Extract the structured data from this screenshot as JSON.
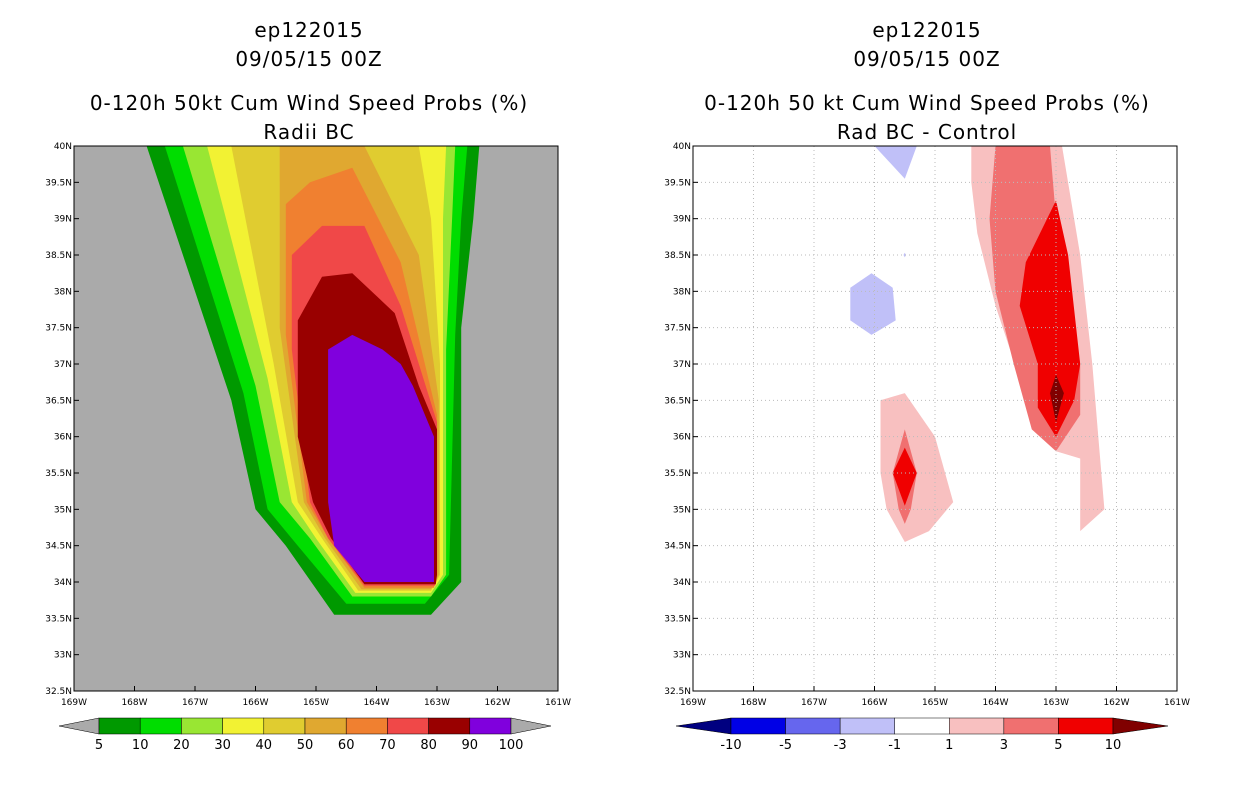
{
  "charts": [
    {
      "storm": "ep122015",
      "datetime": "09/05/15 00Z",
      "title": "0-120h 50kt Cum Wind Speed Probs (%)",
      "subtitle": "Radii BC"
    },
    {
      "storm": "ep122015",
      "datetime": "09/05/15 00Z",
      "title": "0-120h 50 kt Cum Wind Speed Probs (%)",
      "subtitle": "Rad BC - Control"
    }
  ],
  "chart_data": [
    {
      "type": "heatmap",
      "title": "0-120h 50kt Cum Wind Speed Probs (%)",
      "subtitle": "Radii BC",
      "xlim": [
        -169,
        -161
      ],
      "ylim": [
        32.5,
        40
      ],
      "x_ticks": [
        -169,
        -168,
        -167,
        -166,
        -165,
        -164,
        -163,
        -162,
        -161
      ],
      "x_tick_labels": [
        "169W",
        "168W",
        "167W",
        "166W",
        "165W",
        "164W",
        "163W",
        "162W",
        "161W"
      ],
      "y_ticks": [
        32.5,
        33,
        33.5,
        34,
        34.5,
        35,
        35.5,
        36,
        36.5,
        37,
        37.5,
        38,
        38.5,
        39,
        39.5,
        40
      ],
      "y_tick_labels": [
        "32.5N",
        "33N",
        "33.5N",
        "34N",
        "34.5N",
        "35N",
        "35.5N",
        "36N",
        "36.5N",
        "37N",
        "37.5N",
        "38N",
        "38.5N",
        "39N",
        "39.5N",
        "40N"
      ],
      "background": "#aaaaaa",
      "grid": false,
      "colorbar": {
        "labels": [
          "5",
          "10",
          "20",
          "30",
          "40",
          "50",
          "60",
          "70",
          "80",
          "90",
          "100"
        ],
        "colors": [
          "#009900",
          "#00dd00",
          "#99e633",
          "#f2f233",
          "#e0cc30",
          "#e0a830",
          "#f08030",
          "#f04848",
          "#990000",
          "#8000dd"
        ],
        "under_color": "#aaaaaa",
        "over_color": "#aaaaaa"
      },
      "levels": [
        {
          "min": 5,
          "color": "#009900",
          "polygon": [
            [
              -167.8,
              40
            ],
            [
              -166.4,
              36.5
            ],
            [
              -166,
              35
            ],
            [
              -165.5,
              34.5
            ],
            [
              -164.7,
              33.55
            ],
            [
              -163.1,
              33.55
            ],
            [
              -162.6,
              34
            ],
            [
              -162.6,
              37.5
            ],
            [
              -162.4,
              39
            ],
            [
              -162.3,
              40
            ]
          ]
        },
        {
          "min": 10,
          "color": "#00dd00",
          "polygon": [
            [
              -167.5,
              40
            ],
            [
              -166.2,
              36.6
            ],
            [
              -165.8,
              35
            ],
            [
              -165.3,
              34.5
            ],
            [
              -164.5,
              33.7
            ],
            [
              -163.2,
              33.7
            ],
            [
              -162.8,
              34.1
            ],
            [
              -162.7,
              37.4
            ],
            [
              -162.6,
              39
            ],
            [
              -162.5,
              40
            ]
          ]
        },
        {
          "min": 20,
          "color": "#99e633",
          "polygon": [
            [
              -167.2,
              40
            ],
            [
              -166,
              36.7
            ],
            [
              -165.6,
              35.1
            ],
            [
              -165.1,
              34.6
            ],
            [
              -164.4,
              33.8
            ],
            [
              -163.1,
              33.8
            ],
            [
              -162.85,
              34.1
            ],
            [
              -162.85,
              37.2
            ],
            [
              -162.75,
              39
            ],
            [
              -162.7,
              40
            ]
          ]
        },
        {
          "min": 30,
          "color": "#f2f233",
          "polygon": [
            [
              -166.8,
              40
            ],
            [
              -165.8,
              36.8
            ],
            [
              -165.4,
              35.1
            ],
            [
              -165,
              34.6
            ],
            [
              -164.35,
              33.85
            ],
            [
              -163.1,
              33.85
            ],
            [
              -162.9,
              34.1
            ],
            [
              -162.9,
              37.1
            ],
            [
              -162.9,
              39
            ],
            [
              -162.85,
              40
            ]
          ]
        },
        {
          "min": 40,
          "color": "#e0cc30",
          "polygon": [
            [
              -166.4,
              40
            ],
            [
              -165.7,
              37
            ],
            [
              -165.3,
              35.1
            ],
            [
              -164.9,
              34.6
            ],
            [
              -164.3,
              33.88
            ],
            [
              -163.1,
              33.88
            ],
            [
              -162.95,
              34.1
            ],
            [
              -162.95,
              37
            ],
            [
              -163.1,
              39
            ],
            [
              -163.3,
              40
            ]
          ]
        },
        {
          "min": 50,
          "color": "#e0a830",
          "polygon": [
            [
              -165.6,
              40
            ],
            [
              -165.6,
              37.5
            ],
            [
              -165.2,
              35.1
            ],
            [
              -164.85,
              34.6
            ],
            [
              -164.25,
              33.9
            ],
            [
              -163.1,
              33.9
            ],
            [
              -162.97,
              34.1
            ],
            [
              -162.97,
              36.5
            ],
            [
              -163.3,
              38.5
            ],
            [
              -164.2,
              40
            ]
          ]
        },
        {
          "min": 60,
          "color": "#f08030",
          "polygon": [
            [
              -165.5,
              39.2
            ],
            [
              -165.5,
              37.4
            ],
            [
              -165.15,
              35.1
            ],
            [
              -164.8,
              34.6
            ],
            [
              -164.2,
              33.92
            ],
            [
              -163.05,
              33.92
            ],
            [
              -163,
              34.1
            ],
            [
              -163,
              36.3
            ],
            [
              -163.6,
              38.4
            ],
            [
              -164.4,
              39.7
            ],
            [
              -165.1,
              39.5
            ]
          ]
        },
        {
          "min": 70,
          "color": "#f04848",
          "polygon": [
            [
              -165.4,
              38.5
            ],
            [
              -165.4,
              37.2
            ],
            [
              -165.1,
              35.1
            ],
            [
              -164.8,
              34.6
            ],
            [
              -164.2,
              33.95
            ],
            [
              -163.03,
              33.95
            ],
            [
              -163,
              34.1
            ],
            [
              -163,
              36.2
            ],
            [
              -163.6,
              37.8
            ],
            [
              -164.2,
              38.9
            ],
            [
              -164.9,
              38.9
            ]
          ]
        },
        {
          "min": 80,
          "color": "#990000",
          "polygon": [
            [
              -165.3,
              37.6
            ],
            [
              -165.3,
              36
            ],
            [
              -165.05,
              35.1
            ],
            [
              -164.75,
              34.6
            ],
            [
              -164.2,
              33.97
            ],
            [
              -163.02,
              33.97
            ],
            [
              -163,
              34.1
            ],
            [
              -163,
              36.1
            ],
            [
              -163.3,
              36.7
            ],
            [
              -163.7,
              37.7
            ],
            [
              -164.4,
              38.25
            ],
            [
              -164.9,
              38.2
            ]
          ]
        },
        {
          "min": 90,
          "color": "#8000dd",
          "polygon": [
            [
              -164.8,
              37.2
            ],
            [
              -164.8,
              35.1
            ],
            [
              -164.7,
              34.5
            ],
            [
              -164.2,
              34
            ],
            [
              -163.05,
              34
            ],
            [
              -163.05,
              36
            ],
            [
              -163.4,
              36.7
            ],
            [
              -163.6,
              37
            ],
            [
              -163.9,
              37.2
            ],
            [
              -164.4,
              37.4
            ]
          ]
        }
      ]
    },
    {
      "type": "heatmap",
      "title": "0-120h 50 kt Cum Wind Speed Probs (%)",
      "subtitle": "Rad BC - Control",
      "xlim": [
        -169,
        -161
      ],
      "ylim": [
        32.5,
        40
      ],
      "x_ticks": [
        -169,
        -168,
        -167,
        -166,
        -165,
        -164,
        -163,
        -162,
        -161
      ],
      "x_tick_labels": [
        "169W",
        "168W",
        "167W",
        "166W",
        "165W",
        "164W",
        "163W",
        "162W",
        "161W"
      ],
      "y_ticks": [
        32.5,
        33,
        33.5,
        34,
        34.5,
        35,
        35.5,
        36,
        36.5,
        37,
        37.5,
        38,
        38.5,
        39,
        39.5,
        40
      ],
      "y_tick_labels": [
        "32.5N",
        "33N",
        "33.5N",
        "34N",
        "34.5N",
        "35N",
        "35.5N",
        "36N",
        "36.5N",
        "37N",
        "37.5N",
        "38N",
        "38.5N",
        "39N",
        "39.5N",
        "40N"
      ],
      "background": "#ffffff",
      "grid": true,
      "colorbar": {
        "labels": [
          "-10",
          "-5",
          "-3",
          "-1",
          "1",
          "3",
          "5",
          "10"
        ],
        "colors": [
          "#0000e6",
          "#6666ee",
          "#c0c0f8",
          "#ffffff",
          "#f8c0c0",
          "#f07070",
          "#f00000"
        ],
        "under_color": "#000080",
        "over_color": "#800000"
      },
      "levels": [
        {
          "min": -3,
          "color": "#c0c0f8",
          "polygon": [
            [
              -166,
              40
            ],
            [
              -165.3,
              40
            ],
            [
              -165.5,
              39.55
            ]
          ]
        },
        {
          "min": -3,
          "color": "#c0c0f8",
          "polygon": [
            [
              -166.4,
              38.05
            ],
            [
              -166.05,
              38.25
            ],
            [
              -165.7,
              38.05
            ],
            [
              -165.65,
              37.6
            ],
            [
              -166.05,
              37.4
            ],
            [
              -166.4,
              37.6
            ]
          ]
        },
        {
          "min": -3,
          "color": "#c0c0f8",
          "polygon": [
            [
              -165.52,
              38.5
            ],
            [
              -165.5,
              38.53
            ],
            [
              -165.48,
              38.5
            ],
            [
              -165.5,
              38.47
            ]
          ]
        },
        {
          "min": 1,
          "color": "#f8c0c0",
          "polygon": [
            [
              -165.9,
              36.5
            ],
            [
              -165.5,
              36.6
            ],
            [
              -165,
              36
            ],
            [
              -164.7,
              35.1
            ],
            [
              -165.1,
              34.7
            ],
            [
              -165.5,
              34.55
            ],
            [
              -165.8,
              35
            ],
            [
              -165.9,
              35.5
            ]
          ]
        },
        {
          "min": 1,
          "color": "#f8c0c0",
          "polygon": [
            [
              -164.4,
              40
            ],
            [
              -162.9,
              40
            ],
            [
              -162.6,
              38.5
            ],
            [
              -162.4,
              37
            ],
            [
              -162.3,
              36
            ],
            [
              -162.2,
              35
            ],
            [
              -162.6,
              34.7
            ],
            [
              -162.6,
              35.7
            ],
            [
              -163,
              35.8
            ],
            [
              -163.6,
              36.8
            ],
            [
              -164,
              37.8
            ],
            [
              -164.3,
              38.8
            ],
            [
              -164.4,
              39.5
            ]
          ]
        },
        {
          "min": 3,
          "color": "#f07070",
          "polygon": [
            [
              -165.7,
              35.5
            ],
            [
              -165.5,
              36.1
            ],
            [
              -165.3,
              35.5
            ],
            [
              -165.4,
              35
            ],
            [
              -165.5,
              34.8
            ],
            [
              -165.6,
              35
            ]
          ]
        },
        {
          "min": 3,
          "color": "#f07070",
          "polygon": [
            [
              -164,
              40
            ],
            [
              -163.1,
              40
            ],
            [
              -163,
              39
            ],
            [
              -162.8,
              38
            ],
            [
              -162.6,
              37
            ],
            [
              -162.6,
              36.3
            ],
            [
              -163,
              35.8
            ],
            [
              -163.4,
              36.1
            ],
            [
              -163.7,
              37
            ],
            [
              -164,
              38
            ],
            [
              -164.1,
              39
            ]
          ]
        },
        {
          "min": 5,
          "color": "#f00000",
          "polygon": [
            [
              -165.7,
              35.5
            ],
            [
              -165.5,
              35.85
            ],
            [
              -165.3,
              35.5
            ],
            [
              -165.5,
              35.05
            ]
          ]
        },
        {
          "min": 5,
          "color": "#f00000",
          "polygon": [
            [
              -163.5,
              38.4
            ],
            [
              -163,
              39.25
            ],
            [
              -162.8,
              38.5
            ],
            [
              -162.6,
              37
            ],
            [
              -162.7,
              36.5
            ],
            [
              -163,
              36
            ],
            [
              -163.3,
              36.4
            ],
            [
              -163.3,
              37
            ],
            [
              -163.6,
              37.8
            ]
          ]
        },
        {
          "min": 10,
          "color": "#800000",
          "polygon": [
            [
              -163.1,
              36.6
            ],
            [
              -163,
              36.85
            ],
            [
              -162.87,
              36.6
            ],
            [
              -163,
              36.2
            ]
          ]
        }
      ]
    }
  ]
}
